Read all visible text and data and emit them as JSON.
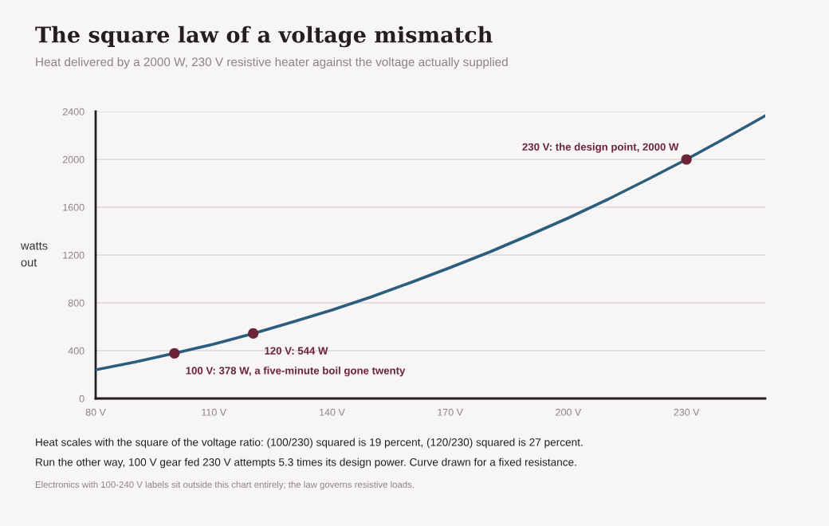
{
  "chart_data": {
    "type": "line",
    "title": "The square law of a voltage mismatch",
    "subtitle": "Heat delivered by a 2000 W, 230 V resistive heater against the voltage actually supplied",
    "ylabel": "watts\nout",
    "xlim": [
      80,
      250
    ],
    "xticks": [
      {
        "value": 80,
        "label": "80 V"
      },
      {
        "value": 110,
        "label": "110 V"
      },
      {
        "value": 140,
        "label": "140 V"
      },
      {
        "value": 170,
        "label": "170 V"
      },
      {
        "value": 200,
        "label": "200 V"
      },
      {
        "value": 230,
        "label": "230 V"
      }
    ],
    "ylim": [
      0,
      2400
    ],
    "yticks": [
      0,
      400,
      800,
      1200,
      1600,
      2000,
      2400
    ],
    "grid": "y",
    "series": [
      {
        "color": "#2b5d7d",
        "x": [
          80,
          90,
          100,
          110,
          120,
          130,
          140,
          150,
          160,
          170,
          180,
          190,
          200,
          210,
          220,
          230,
          240,
          250
        ],
        "values": [
          240,
          305,
          378,
          455,
          544,
          640,
          740,
          850,
          970,
          1095,
          1225,
          1365,
          1510,
          1665,
          1830,
          2000,
          2180,
          2365
        ]
      },
      {
        "type": "scatter",
        "color": "#6b2438",
        "marker": "circle",
        "x": [
          100,
          120,
          230
        ],
        "values": [
          378,
          544,
          2000
        ]
      }
    ],
    "annotations": [
      {
        "text": "100 V: 378 W, a five-minute boil gone twenty",
        "x": 100,
        "y": 378
      },
      {
        "text": "120 V: 544 W",
        "x": 120,
        "y": 544
      },
      {
        "text": "230 V: the design point, 2000 W",
        "x": 230,
        "y": 2000
      },
      "Heat scales with the square of the voltage ratio: (100/230) squared is 19 percent, (120/230) squared is 27 percent.",
      "Run the other way, 100 V gear fed 230 V attempts 5.3 times its design power. Curve drawn for a fixed resistance.",
      "Electronics with 100-240 V labels sit outside this chart entirely; the law governs resistive loads."
    ]
  }
}
